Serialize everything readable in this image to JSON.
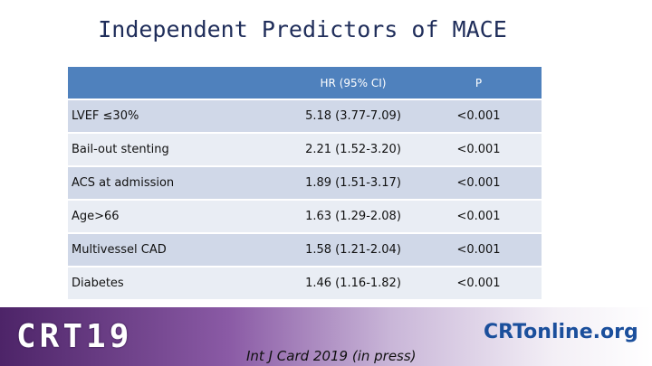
{
  "title": "Independent Predictors of MACE",
  "table": {
    "headers": [
      "HR (95% CI)",
      "P"
    ],
    "rows": [
      [
        "LVEF ≤30%",
        "5.18 (3.77-7.09)",
        "<0.001"
      ],
      [
        "Bail-out stenting",
        "2.21 (1.52-3.20)",
        "<0.001"
      ],
      [
        "ACS at admission",
        "1.89 (1.51-3.17)",
        "<0.001"
      ],
      [
        "Age>66",
        "1.63 (1.29-2.08)",
        "<0.001"
      ],
      [
        "Multivessel CAD",
        "1.58 (1.21-2.04)",
        "<0.001"
      ],
      [
        "Diabetes",
        "1.46 (1.16-1.82)",
        "<0.001"
      ]
    ]
  },
  "footer": {
    "left_logo": "CRT19",
    "citation": "Int J Card 2019 (in press)",
    "right_logo": "CRTonline.org"
  }
}
